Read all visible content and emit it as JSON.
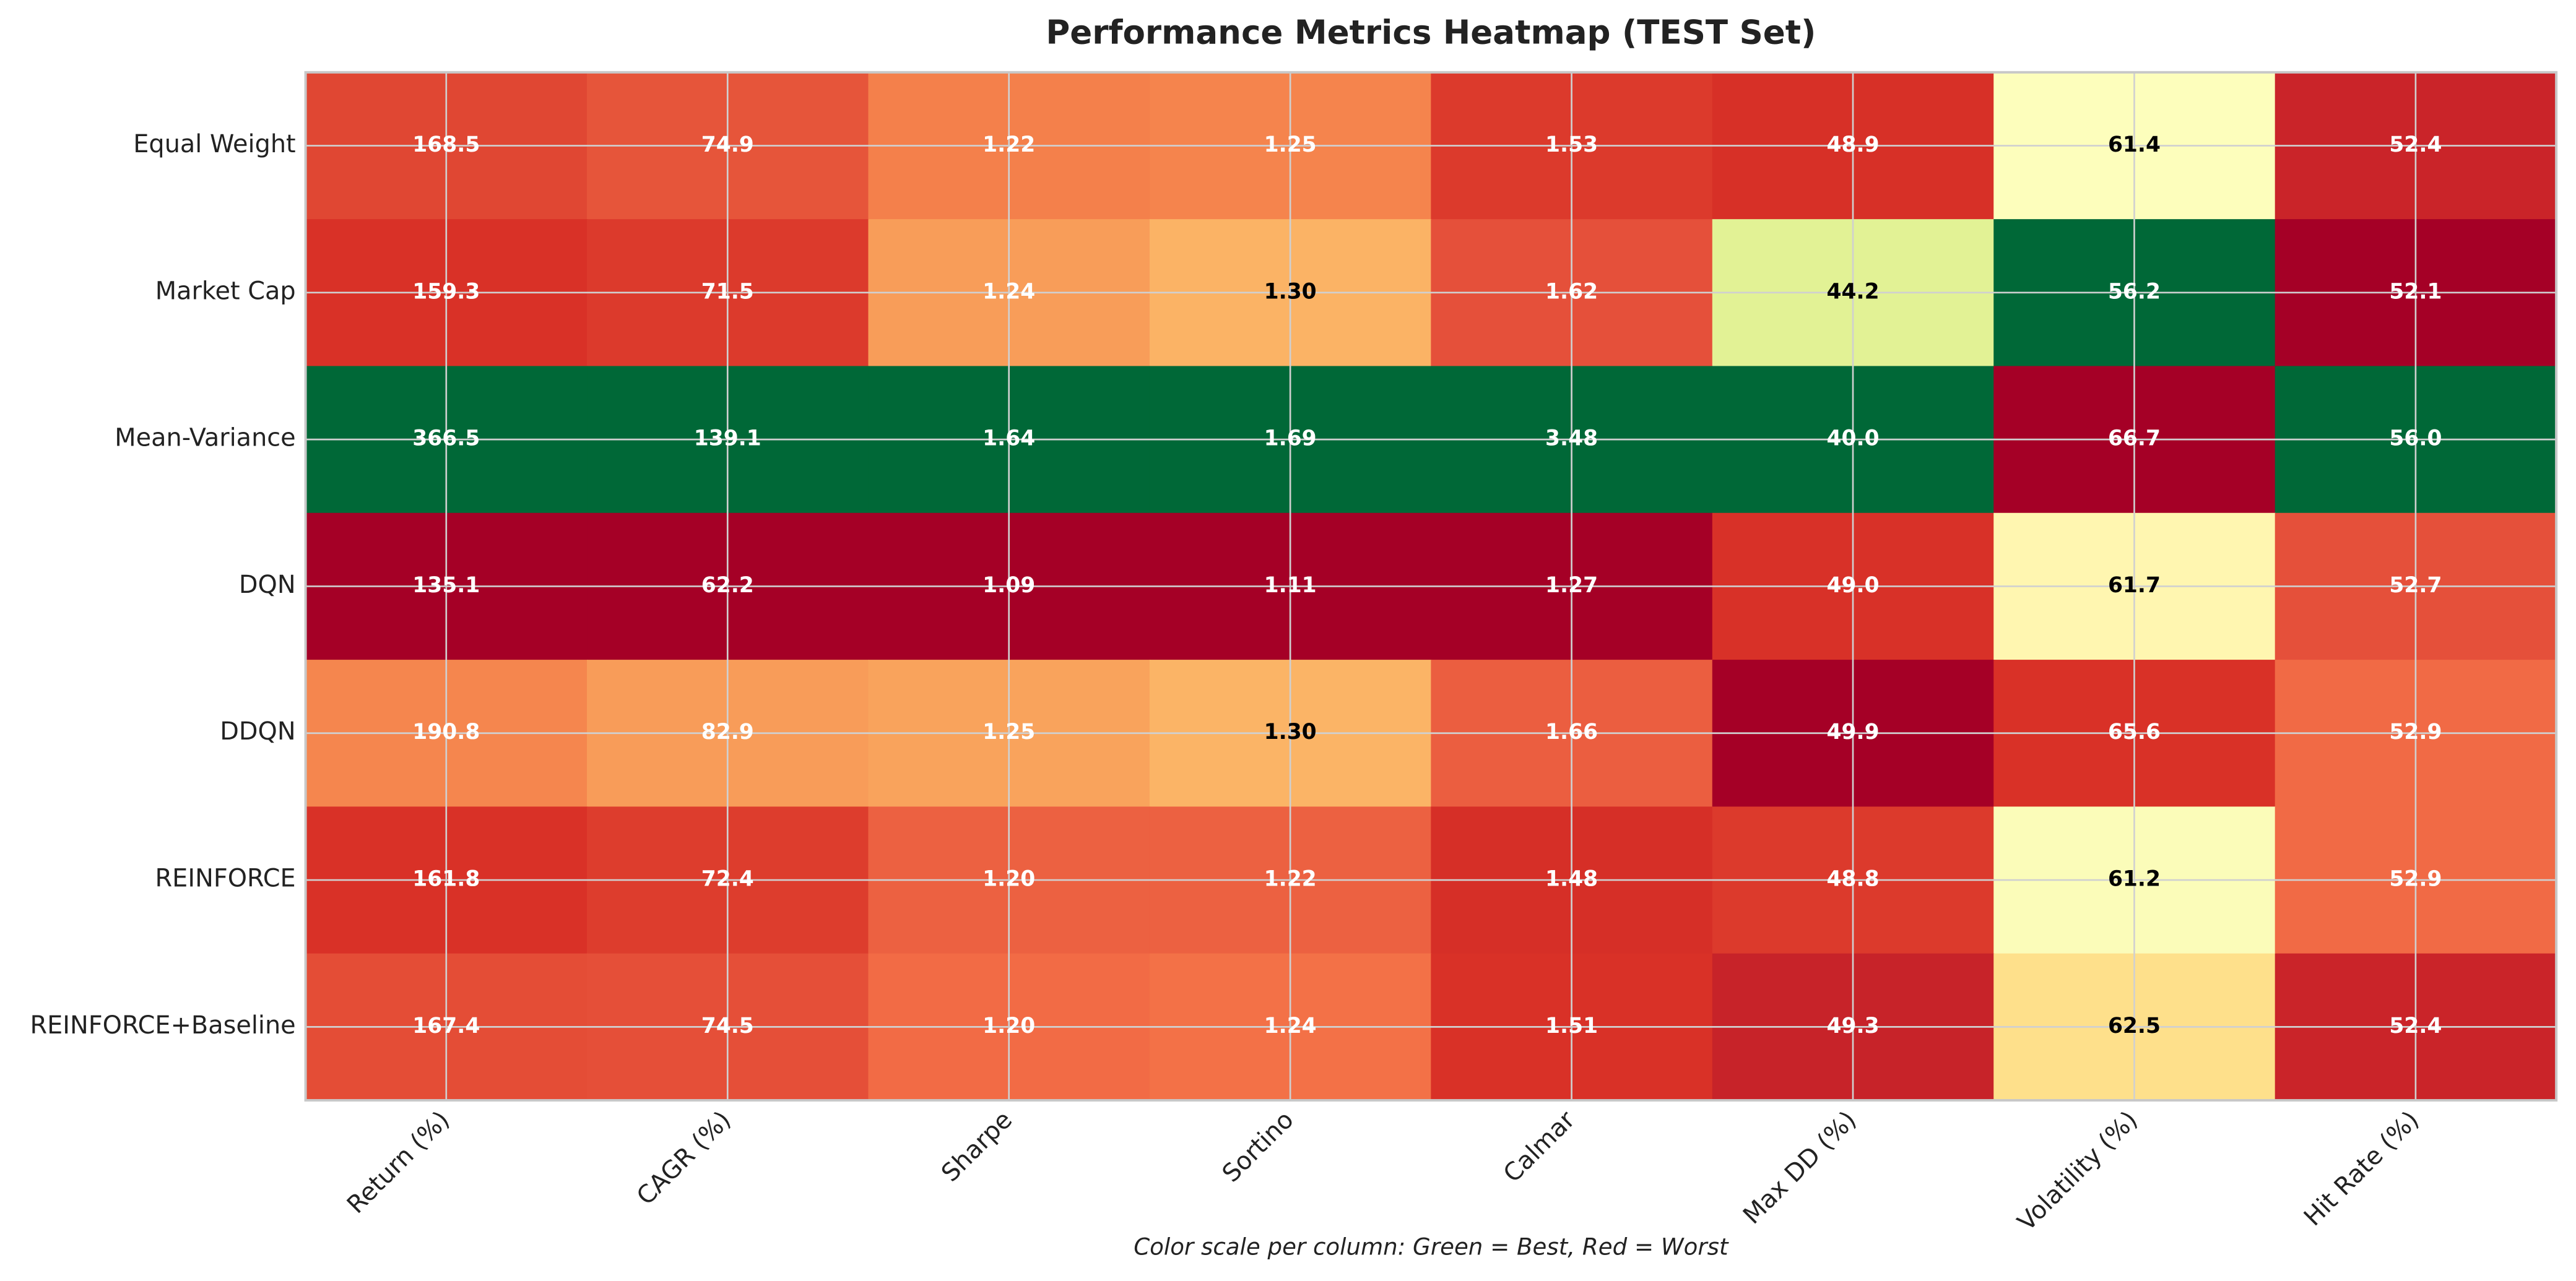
{
  "chart_data": {
    "type": "heatmap",
    "title": "Performance Metrics Heatmap (TEST Set)",
    "note": "Color scale per column: Green = Best, Red = Worst",
    "rows": [
      "Equal Weight",
      "Market Cap",
      "Mean-Variance",
      "DQN",
      "DDQN",
      "REINFORCE",
      "REINFORCE+Baseline"
    ],
    "columns": [
      "Return (%)",
      "CAGR (%)",
      "Sharpe",
      "Sortino",
      "Calmar",
      "Max DD (%)",
      "Volatility (%)",
      "Hit Rate (%)"
    ],
    "values": [
      [
        168.5,
        74.9,
        1.22,
        1.25,
        1.53,
        48.9,
        61.4,
        52.4
      ],
      [
        159.3,
        71.5,
        1.24,
        1.3,
        1.62,
        44.2,
        56.2,
        52.1
      ],
      [
        366.5,
        139.1,
        1.64,
        1.69,
        3.48,
        40,
        66.7,
        56
      ],
      [
        135.1,
        62.2,
        1.09,
        1.11,
        1.27,
        49,
        61.7,
        52.7
      ],
      [
        190.8,
        82.9,
        1.25,
        1.3,
        1.66,
        49.9,
        65.6,
        52.9
      ],
      [
        161.8,
        72.4,
        1.2,
        1.22,
        1.48,
        48.8,
        61.2,
        52.9
      ],
      [
        167.4,
        74.5,
        1.2,
        1.24,
        1.51,
        49.3,
        62.5,
        52.4
      ]
    ],
    "value_labels": [
      [
        "168.5",
        "74.9",
        "1.22",
        "1.25",
        "1.53",
        "48.9",
        "61.4",
        "52.4"
      ],
      [
        "159.3",
        "71.5",
        "1.24",
        "1.30",
        "1.62",
        "44.2",
        "56.2",
        "52.1"
      ],
      [
        "366.5",
        "139.1",
        "1.64",
        "1.69",
        "3.48",
        "40.0",
        "66.7",
        "56.0"
      ],
      [
        "135.1",
        "62.2",
        "1.09",
        "1.11",
        "1.27",
        "49.0",
        "61.7",
        "52.7"
      ],
      [
        "190.8",
        "82.9",
        "1.25",
        "1.30",
        "1.66",
        "49.9",
        "65.6",
        "52.9"
      ],
      [
        "161.8",
        "72.4",
        "1.20",
        "1.22",
        "1.48",
        "48.8",
        "61.2",
        "52.9"
      ],
      [
        "167.4",
        "74.5",
        "1.20",
        "1.24",
        "1.51",
        "49.3",
        "62.5",
        "52.4"
      ]
    ],
    "cell_colors": [
      [
        "#e04733",
        "#e6553a",
        "#f4804b",
        "#f5844d",
        "#dc3a2c",
        "#d73027",
        "#fdfebc",
        "#ca2429"
      ],
      [
        "#d93127",
        "#dc3a2c",
        "#f89d59",
        "#fbb365",
        "#e5503a",
        "#e2f295",
        "#006837",
        "#a50026"
      ],
      [
        "#006837",
        "#006837",
        "#006837",
        "#006837",
        "#006837",
        "#006837",
        "#a50026",
        "#006837"
      ],
      [
        "#a50026",
        "#a50026",
        "#a50026",
        "#a50026",
        "#a50026",
        "#d83128",
        "#fff6b0",
        "#e5503a"
      ],
      [
        "#f5864e",
        "#f89c59",
        "#f9a35c",
        "#fbb466",
        "#eb5e40",
        "#a50026",
        "#d93127",
        "#f16a45"
      ],
      [
        "#d93127",
        "#dd3d2d",
        "#ec6141",
        "#ec6141",
        "#d62f27",
        "#dc3a2c",
        "#fbfcb9",
        "#f16a45"
      ],
      [
        "#e44d36",
        "#e54f38",
        "#f26b45",
        "#f37147",
        "#d93127",
        "#c72329",
        "#fee08b",
        "#ca2429"
      ]
    ],
    "label_colors": [
      [
        "#ffffff",
        "#ffffff",
        "#ffffff",
        "#ffffff",
        "#ffffff",
        "#ffffff",
        "#000000",
        "#ffffff"
      ],
      [
        "#ffffff",
        "#ffffff",
        "#ffffff",
        "#000000",
        "#ffffff",
        "#000000",
        "#ffffff",
        "#ffffff"
      ],
      [
        "#ffffff",
        "#ffffff",
        "#ffffff",
        "#ffffff",
        "#ffffff",
        "#ffffff",
        "#ffffff",
        "#ffffff"
      ],
      [
        "#ffffff",
        "#ffffff",
        "#ffffff",
        "#ffffff",
        "#ffffff",
        "#ffffff",
        "#000000",
        "#ffffff"
      ],
      [
        "#ffffff",
        "#ffffff",
        "#ffffff",
        "#000000",
        "#ffffff",
        "#ffffff",
        "#ffffff",
        "#ffffff"
      ],
      [
        "#ffffff",
        "#ffffff",
        "#ffffff",
        "#ffffff",
        "#ffffff",
        "#ffffff",
        "#000000",
        "#ffffff"
      ],
      [
        "#ffffff",
        "#ffffff",
        "#ffffff",
        "#ffffff",
        "#ffffff",
        "#ffffff",
        "#000000",
        "#ffffff"
      ]
    ],
    "grid": true
  }
}
